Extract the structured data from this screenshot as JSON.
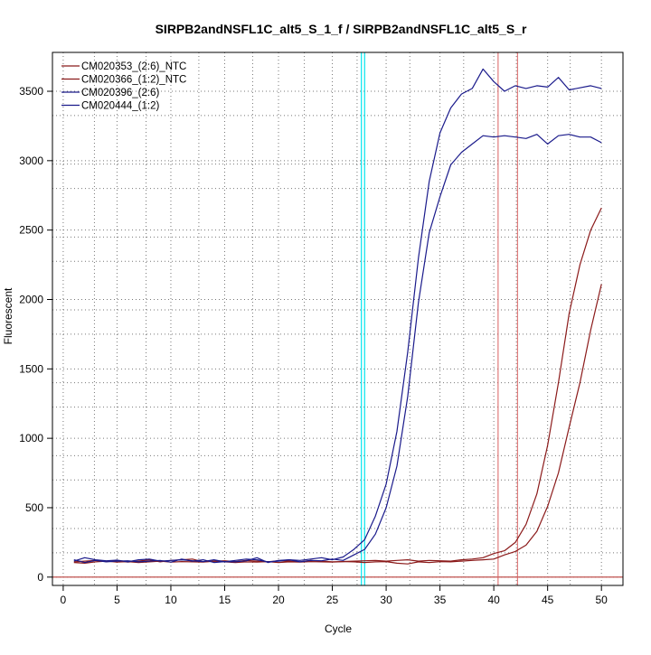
{
  "chart_data": {
    "type": "line",
    "title": "SIRPB2andNSFL1C_alt5_S_1_f / SIRPB2andNSFL1C_alt5_S_r",
    "xlabel": "Cycle",
    "ylabel": "Fluorescent",
    "xlim": [
      -1.0,
      52.0
    ],
    "ylim": [
      -60,
      3780
    ],
    "xticks": [
      0,
      5,
      10,
      15,
      20,
      25,
      30,
      35,
      40,
      45,
      50
    ],
    "yticks": [
      0,
      500,
      1000,
      1500,
      2000,
      2500,
      3000,
      3500
    ],
    "grid_x": [
      2.9,
      7.7,
      12.6,
      17.6,
      22.4,
      27.3,
      32.2,
      37.2,
      42.1,
      47.1
    ],
    "grid_y": [
      175,
      350,
      700,
      875,
      1225,
      1400,
      1750,
      1925,
      2275,
      2450,
      2800,
      2975,
      3325,
      3500
    ],
    "legend_position": "top-left",
    "threshold_y": 0,
    "colors": {
      "red_series": "#8b1a1a",
      "blue_series": "#1a1a8b",
      "threshold_line": "#c0504d",
      "red_ct_line": "#d96060",
      "cyan_ct_line": "#00e5ee",
      "grid": "#777777"
    },
    "ct_lines": {
      "red": [
        40.4,
        42.2
      ],
      "cyan": [
        27.7,
        28.0
      ]
    },
    "x": [
      1,
      2,
      3,
      4,
      5,
      6,
      7,
      8,
      9,
      10,
      11,
      12,
      13,
      14,
      15,
      16,
      17,
      18,
      19,
      20,
      21,
      22,
      23,
      24,
      25,
      26,
      27,
      28,
      29,
      30,
      31,
      32,
      33,
      34,
      35,
      36,
      37,
      38,
      39,
      40,
      41,
      42,
      43,
      44,
      45,
      46,
      47,
      48,
      49,
      50
    ],
    "series": [
      {
        "name": "CM020353_(2:6)_NTC",
        "color": "#8b1a1a",
        "values": [
          110,
          115,
          120,
          112,
          118,
          108,
          115,
          125,
          110,
          120,
          125,
          130,
          110,
          115,
          118,
          112,
          120,
          115,
          110,
          118,
          115,
          110,
          120,
          115,
          110,
          112,
          115,
          118,
          120,
          115,
          120,
          125,
          115,
          120,
          118,
          115,
          125,
          130,
          140,
          170,
          190,
          250,
          380,
          600,
          950,
          1400,
          1900,
          2250,
          2500,
          2660
        ]
      },
      {
        "name": "CM020366_(1:2)_NTC",
        "color": "#8b1a1a",
        "values": [
          105,
          100,
          110,
          115,
          108,
          112,
          105,
          110,
          115,
          108,
          112,
          110,
          108,
          115,
          110,
          105,
          110,
          108,
          112,
          105,
          110,
          108,
          112,
          110,
          108,
          112,
          110,
          105,
          110,
          112,
          100,
          95,
          110,
          105,
          112,
          110,
          115,
          120,
          125,
          130,
          160,
          185,
          230,
          330,
          510,
          750,
          1080,
          1400,
          1780,
          2110
        ]
      },
      {
        "name": "CM020396_(2:6)",
        "color": "#1a1a8b",
        "values": [
          115,
          140,
          125,
          118,
          122,
          110,
          125,
          130,
          115,
          120,
          125,
          118,
          112,
          125,
          110,
          120,
          130,
          125,
          110,
          115,
          125,
          120,
          130,
          140,
          125,
          145,
          200,
          270,
          440,
          670,
          1050,
          1620,
          2300,
          2850,
          3200,
          3380,
          3480,
          3520,
          3660,
          3570,
          3500,
          3540,
          3520,
          3540,
          3530,
          3600,
          3510,
          3525,
          3540,
          3520
        ]
      },
      {
        "name": "CM020444_(1:2)",
        "color": "#1a1a8b",
        "values": [
          125,
          105,
          120,
          110,
          115,
          118,
          110,
          115,
          120,
          108,
          130,
          115,
          125,
          105,
          112,
          110,
          118,
          140,
          105,
          120,
          125,
          110,
          120,
          118,
          130,
          120,
          160,
          200,
          310,
          500,
          800,
          1300,
          1980,
          2480,
          2740,
          2970,
          3060,
          3120,
          3180,
          3170,
          3180,
          3170,
          3160,
          3190,
          3120,
          3180,
          3190,
          3170,
          3170,
          3130
        ]
      }
    ]
  }
}
